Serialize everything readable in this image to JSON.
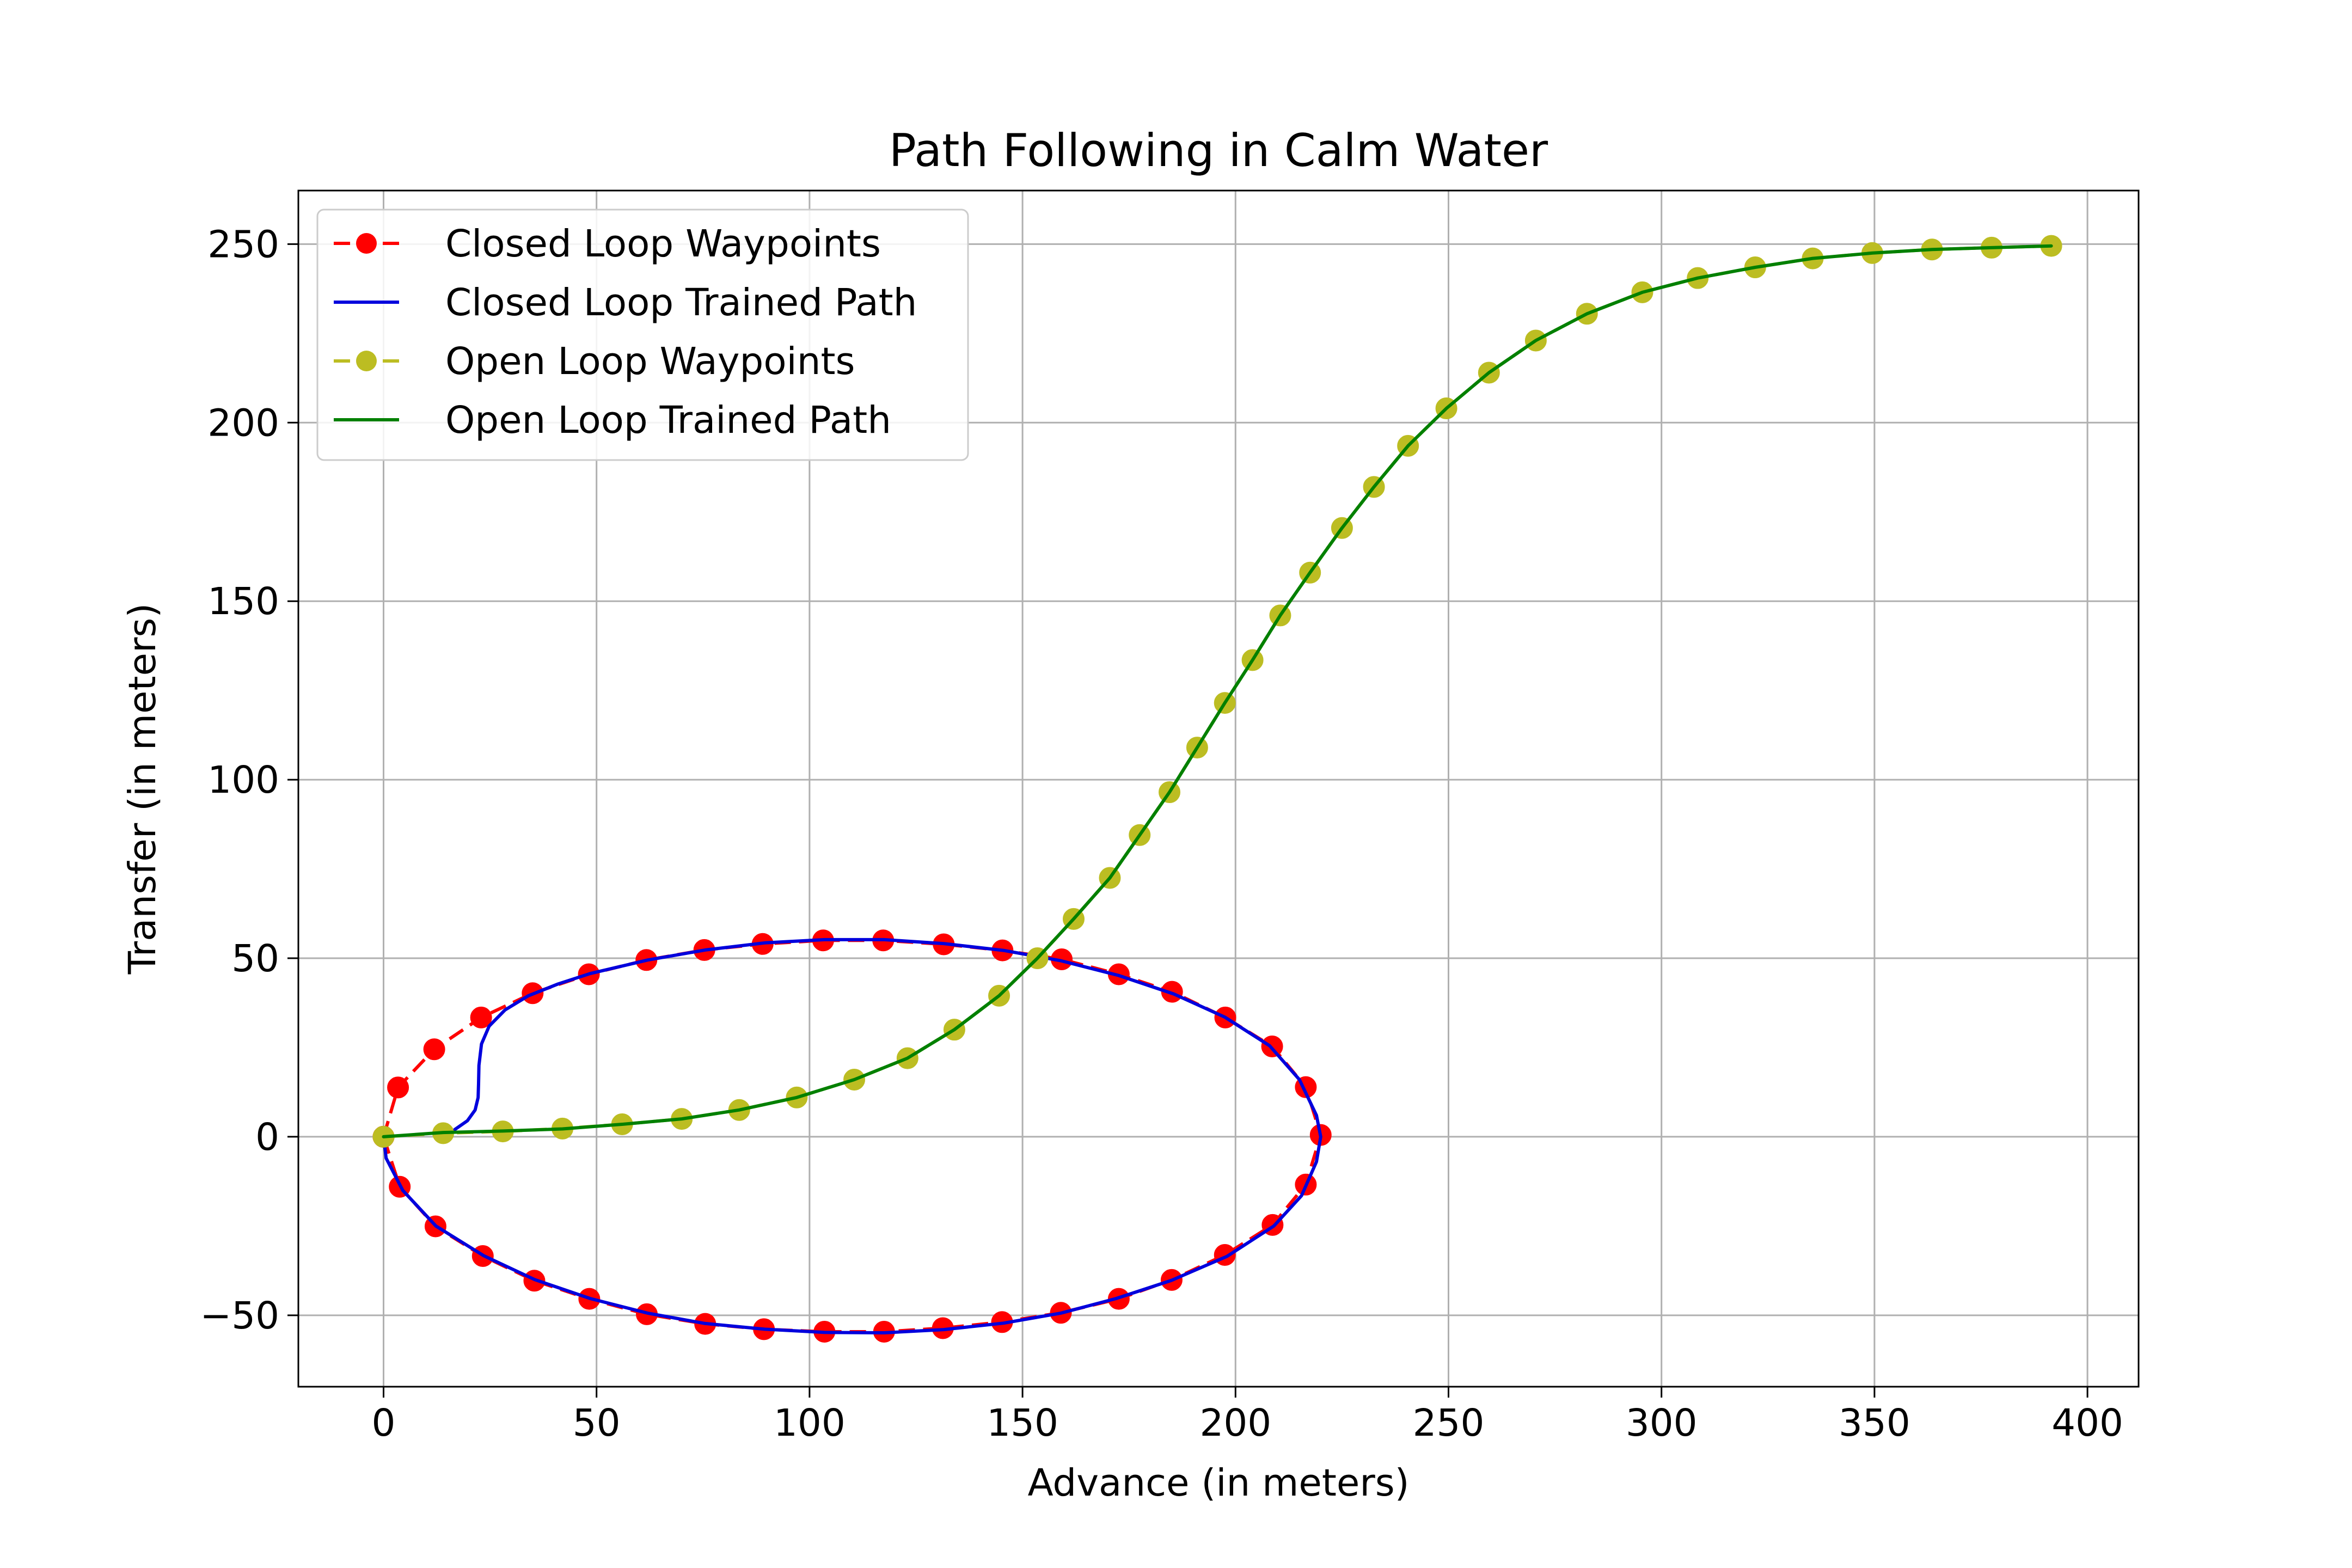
{
  "chart_data": {
    "type": "line",
    "title": "Path Following in Calm Water",
    "xlabel": "Advance (in meters)",
    "ylabel": "Transfer (in meters)",
    "xlim": [
      -20,
      412
    ],
    "ylim": [
      -70,
      265
    ],
    "xticks": [
      0,
      50,
      100,
      150,
      200,
      250,
      300,
      350,
      400
    ],
    "yticks": [
      -50,
      0,
      50,
      100,
      150,
      200,
      250
    ],
    "xtick_labels": [
      "0",
      "50",
      "100",
      "150",
      "200",
      "250",
      "300",
      "350",
      "400"
    ],
    "ytick_labels": [
      "−50",
      "0",
      "50",
      "100",
      "150",
      "200",
      "250"
    ],
    "grid": true,
    "legend_position": "upper-left",
    "series": [
      {
        "name": "Closed Loop Waypoints",
        "style": "dashed-markers",
        "color": "#ff0000",
        "points": [
          [
            0,
            0
          ],
          [
            3.4,
            13.8
          ],
          [
            11.9,
            24.5
          ],
          [
            22.9,
            33.4
          ],
          [
            35.0,
            40.2
          ],
          [
            48.2,
            45.5
          ],
          [
            61.7,
            49.5
          ],
          [
            75.3,
            52.3
          ],
          [
            89.0,
            54.0
          ],
          [
            103.2,
            55.0
          ],
          [
            117.3,
            55.0
          ],
          [
            131.5,
            53.9
          ],
          [
            145.3,
            52.2
          ],
          [
            159.2,
            49.7
          ],
          [
            172.6,
            45.5
          ],
          [
            185.1,
            40.6
          ],
          [
            197.6,
            33.4
          ],
          [
            208.6,
            25.3
          ],
          [
            216.5,
            13.9
          ],
          [
            220.0,
            0.5
          ],
          [
            216.5,
            -13.4
          ],
          [
            208.7,
            -24.7
          ],
          [
            197.5,
            -33.1
          ],
          [
            185.0,
            -40.1
          ],
          [
            172.6,
            -45.4
          ],
          [
            159.0,
            -49.3
          ],
          [
            145.2,
            -51.9
          ],
          [
            131.3,
            -53.6
          ],
          [
            117.5,
            -54.6
          ],
          [
            103.5,
            -54.6
          ],
          [
            89.3,
            -53.9
          ],
          [
            75.5,
            -52.4
          ],
          [
            61.8,
            -49.7
          ],
          [
            48.3,
            -45.4
          ],
          [
            35.4,
            -40.3
          ],
          [
            23.3,
            -33.4
          ],
          [
            12.2,
            -25.1
          ],
          [
            3.8,
            -14.0
          ],
          [
            0,
            0
          ]
        ]
      },
      {
        "name": "Closed Loop Trained Path",
        "style": "solid",
        "color": "#0000dd",
        "points": [
          [
            16.7,
            2.0
          ],
          [
            19.7,
            4.5
          ],
          [
            21.5,
            7.5
          ],
          [
            22.2,
            11.0
          ],
          [
            22.3,
            15.0
          ],
          [
            22.4,
            20.0
          ],
          [
            23.0,
            26.0
          ],
          [
            24.8,
            31.0
          ],
          [
            28.5,
            35.5
          ],
          [
            34.0,
            39.5
          ],
          [
            41.0,
            42.8
          ],
          [
            48.5,
            45.7
          ],
          [
            62.0,
            49.5
          ],
          [
            75.5,
            52.3
          ],
          [
            89.5,
            54.3
          ],
          [
            103.5,
            55.2
          ],
          [
            117.5,
            55.2
          ],
          [
            131.5,
            54.1
          ],
          [
            145.5,
            52.2
          ],
          [
            159.0,
            49.3
          ],
          [
            172.5,
            45.2
          ],
          [
            185.5,
            40.0
          ],
          [
            197.5,
            33.5
          ],
          [
            208.0,
            25.5
          ],
          [
            215.0,
            16.0
          ],
          [
            219.0,
            6.0
          ],
          [
            220.0,
            0.0
          ],
          [
            219.0,
            -7.0
          ],
          [
            215.5,
            -16.5
          ],
          [
            209.0,
            -25.0
          ],
          [
            198.0,
            -33.5
          ],
          [
            185.0,
            -40.2
          ],
          [
            172.0,
            -45.3
          ],
          [
            159.0,
            -49.4
          ],
          [
            145.5,
            -52.2
          ],
          [
            131.5,
            -54.0
          ],
          [
            117.5,
            -54.9
          ],
          [
            103.5,
            -54.8
          ],
          [
            89.5,
            -53.9
          ],
          [
            75.5,
            -52.3
          ],
          [
            62.0,
            -49.4
          ],
          [
            48.5,
            -45.3
          ],
          [
            35.5,
            -40.0
          ],
          [
            23.5,
            -33.3
          ],
          [
            12.3,
            -25.0
          ],
          [
            4.5,
            -15.0
          ],
          [
            0.6,
            -6.0
          ],
          [
            0.0,
            0.0
          ]
        ]
      },
      {
        "name": "Open Loop Waypoints",
        "style": "dashed-markers",
        "color": "#bcbd22",
        "points": [
          [
            0,
            0
          ],
          [
            14.0,
            1.0
          ],
          [
            28.0,
            1.5
          ],
          [
            42.0,
            2.3
          ],
          [
            56.0,
            3.5
          ],
          [
            70.0,
            5.0
          ],
          [
            83.5,
            7.5
          ],
          [
            97.0,
            11.0
          ],
          [
            110.5,
            16.0
          ],
          [
            123.0,
            22.0
          ],
          [
            134.0,
            30.0
          ],
          [
            144.5,
            39.5
          ],
          [
            153.5,
            50.0
          ],
          [
            162.0,
            61.0
          ],
          [
            170.5,
            72.5
          ],
          [
            177.5,
            84.5
          ],
          [
            184.5,
            96.5
          ],
          [
            191.0,
            109.0
          ],
          [
            197.5,
            121.5
          ],
          [
            204.0,
            133.5
          ],
          [
            210.5,
            146.0
          ],
          [
            217.5,
            158.0
          ],
          [
            225.0,
            170.5
          ],
          [
            232.5,
            182.0
          ],
          [
            240.5,
            193.5
          ],
          [
            249.5,
            204.0
          ],
          [
            259.5,
            214.0
          ],
          [
            270.5,
            223.0
          ],
          [
            282.5,
            230.5
          ],
          [
            295.5,
            236.5
          ],
          [
            308.5,
            240.5
          ],
          [
            322.0,
            243.5
          ],
          [
            335.5,
            246.0
          ],
          [
            349.5,
            247.5
          ],
          [
            363.5,
            248.5
          ],
          [
            377.5,
            249.0
          ],
          [
            391.5,
            249.5
          ]
        ]
      },
      {
        "name": "Open Loop Trained Path",
        "style": "solid",
        "color": "#008000",
        "points": [
          [
            0,
            0
          ],
          [
            14.0,
            1.2
          ],
          [
            28.0,
            1.6
          ],
          [
            42.0,
            2.2
          ],
          [
            56.0,
            3.5
          ],
          [
            70.0,
            5.0
          ],
          [
            83.5,
            7.5
          ],
          [
            97.0,
            11.0
          ],
          [
            110.5,
            16.0
          ],
          [
            123.0,
            22.0
          ],
          [
            134.0,
            30.0
          ],
          [
            144.5,
            39.5
          ],
          [
            153.5,
            50.0
          ],
          [
            162.0,
            61.0
          ],
          [
            170.5,
            72.5
          ],
          [
            177.5,
            84.5
          ],
          [
            184.5,
            96.5
          ],
          [
            191.0,
            109.0
          ],
          [
            197.5,
            121.5
          ],
          [
            204.0,
            133.5
          ],
          [
            210.5,
            146.0
          ],
          [
            217.5,
            158.0
          ],
          [
            225.0,
            170.5
          ],
          [
            232.5,
            182.0
          ],
          [
            240.5,
            193.5
          ],
          [
            249.5,
            204.0
          ],
          [
            259.5,
            214.0
          ],
          [
            270.5,
            223.0
          ],
          [
            282.5,
            230.5
          ],
          [
            295.5,
            236.5
          ],
          [
            308.5,
            240.5
          ],
          [
            322.0,
            243.5
          ],
          [
            335.5,
            246.0
          ],
          [
            349.5,
            247.5
          ],
          [
            363.5,
            248.5
          ],
          [
            377.5,
            249.0
          ],
          [
            391.5,
            249.5
          ]
        ]
      }
    ]
  }
}
